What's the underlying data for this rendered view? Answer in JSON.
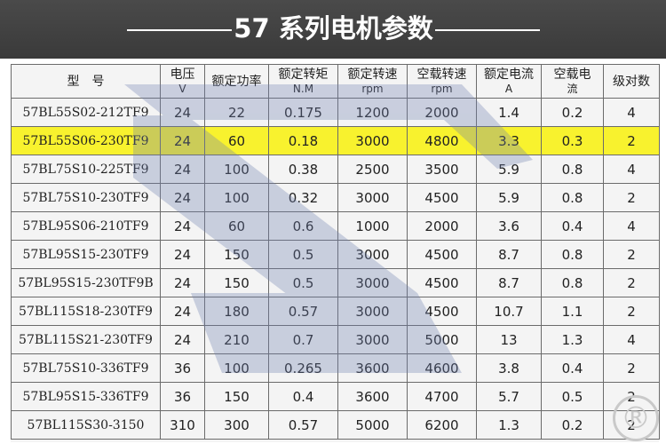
{
  "banner": {
    "title": "57 系列电机参数"
  },
  "table": {
    "headers": [
      {
        "main": "型　号",
        "sub": ""
      },
      {
        "main": "电压",
        "sub": "V"
      },
      {
        "main": "额定功率",
        "sub": ""
      },
      {
        "main": "额定转矩",
        "sub": "N.M"
      },
      {
        "main": "额定转速",
        "sub": "rpm"
      },
      {
        "main": "空载转速",
        "sub": "rpm"
      },
      {
        "main": "额定电流",
        "sub": "A"
      },
      {
        "main": "空载电",
        "sub": "流"
      },
      {
        "main": "级对数",
        "sub": ""
      }
    ],
    "rows": [
      {
        "model": "57BL55S02-212TF9",
        "voltage": "24",
        "power": "22",
        "torque": "0.175",
        "rated_speed": "1200",
        "noload_speed": "2000",
        "rated_current": "1.4",
        "noload_current": "0.2",
        "pole_pairs": "4",
        "highlight": false
      },
      {
        "model": "57BL55S06-230TF9",
        "voltage": "24",
        "power": "60",
        "torque": "0.18",
        "rated_speed": "3000",
        "noload_speed": "4800",
        "rated_current": "3.3",
        "noload_current": "0.3",
        "pole_pairs": "2",
        "highlight": true
      },
      {
        "model": "57BL75S10-225TF9",
        "voltage": "24",
        "power": "100",
        "torque": "0.38",
        "rated_speed": "2500",
        "noload_speed": "3500",
        "rated_current": "5.9",
        "noload_current": "0.8",
        "pole_pairs": "4",
        "highlight": false
      },
      {
        "model": "57BL75S10-230TF9",
        "voltage": "24",
        "power": "100",
        "torque": "0.32",
        "rated_speed": "3000",
        "noload_speed": "4500",
        "rated_current": "5.9",
        "noload_current": "0.8",
        "pole_pairs": "2",
        "highlight": false
      },
      {
        "model": "57BL95S06-210TF9",
        "voltage": "24",
        "power": "60",
        "torque": "0.6",
        "rated_speed": "1000",
        "noload_speed": "2000",
        "rated_current": "3.6",
        "noload_current": "0.4",
        "pole_pairs": "4",
        "highlight": false
      },
      {
        "model": "57BL95S15-230TF9",
        "voltage": "24",
        "power": "150",
        "torque": "0.5",
        "rated_speed": "3000",
        "noload_speed": "4500",
        "rated_current": "8.7",
        "noload_current": "0.8",
        "pole_pairs": "2",
        "highlight": false
      },
      {
        "model": "57BL95S15-230TF9B",
        "voltage": "24",
        "power": "150",
        "torque": "0.5",
        "rated_speed": "3000",
        "noload_speed": "4500",
        "rated_current": "8.7",
        "noload_current": "0.8",
        "pole_pairs": "2",
        "highlight": false
      },
      {
        "model": "57BL115S18-230TF9",
        "voltage": "24",
        "power": "180",
        "torque": "0.57",
        "rated_speed": "3000",
        "noload_speed": "4500",
        "rated_current": "10.7",
        "noload_current": "1.1",
        "pole_pairs": "2",
        "highlight": false
      },
      {
        "model": "57BL115S21-230TF9",
        "voltage": "24",
        "power": "210",
        "torque": "0.7",
        "rated_speed": "3000",
        "noload_speed": "5000",
        "rated_current": "13",
        "noload_current": "1.3",
        "pole_pairs": "4",
        "highlight": false
      },
      {
        "model": "57BL75S10-336TF9",
        "voltage": "36",
        "power": "100",
        "torque": "0.265",
        "rated_speed": "3600",
        "noload_speed": "4600",
        "rated_current": "3.8",
        "noload_current": "0.4",
        "pole_pairs": "2",
        "highlight": false
      },
      {
        "model": "57BL95S15-336TF9",
        "voltage": "36",
        "power": "150",
        "torque": "0.4",
        "rated_speed": "3600",
        "noload_speed": "4700",
        "rated_current": "5.7",
        "noload_current": "0.5",
        "pole_pairs": "2",
        "highlight": false
      },
      {
        "model": "57BL115S30-3150",
        "voltage": "310",
        "power": "300",
        "torque": "0.57",
        "rated_speed": "5000",
        "noload_speed": "6200",
        "rated_current": "1.3",
        "noload_current": "0.2",
        "pole_pairs": "2",
        "highlight": false
      }
    ]
  },
  "colors": {
    "banner": "#404040",
    "highlight": "#f8f22e",
    "watermark": "#bcc3d8",
    "border": "#6b6b6b"
  },
  "watermark_mark": "®"
}
